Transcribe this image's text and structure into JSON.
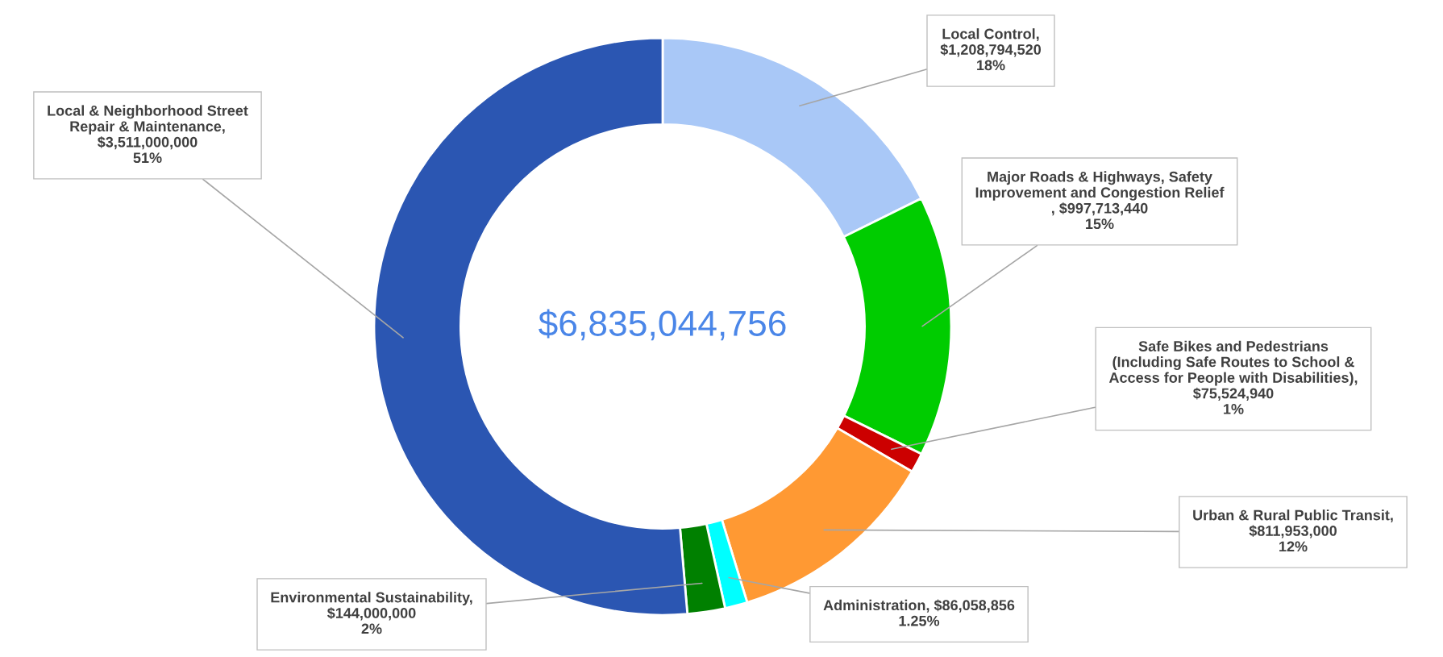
{
  "chart_data": {
    "type": "donut",
    "categories": [
      "Local Control",
      "Major Roads & Highways, Safety\nImprovement and Congestion Relief",
      "Safe Bikes and Pedestrians\n(Including Safe Routes to School &\nAccess for People with Disabilities)",
      "Urban & Rural Public Transit",
      "Administration",
      "Environmental Sustainability",
      "Local & Neighborhood Street\nRepair & Maintenance"
    ],
    "values": [
      1208794520,
      997713440,
      75524940,
      811953000,
      86058856,
      144000000,
      3511000000
    ],
    "value_labels": [
      ",\n$1,208,794,520\n18%",
      "\n, $997,713,440\n15%",
      ",\n$75,524,940\n1%",
      ",\n$811,953,000\n12%",
      ", $86,058,856\n1.25%",
      ",\n$144,000,000\n2%",
      ",\n$3,511,000,000\n51%"
    ],
    "colors": [
      "#a9c8f7",
      "#00cc00",
      "#cc0000",
      "#ff9933",
      "#00ffff",
      "#008000",
      "#2b56b2"
    ],
    "annotations": [
      "$6,835,044,756"
    ],
    "legend": false
  }
}
